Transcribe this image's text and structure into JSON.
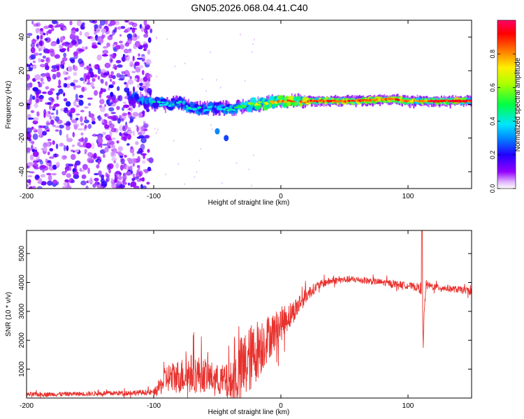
{
  "chart_data": [
    {
      "type": "heatmap",
      "title": "GN05.2026.068.04.41.C40",
      "xlabel": "Height of straight line (km)",
      "ylabel": "Frequency (Hz)",
      "xlim": [
        -200,
        150
      ],
      "ylim": [
        -50,
        50
      ],
      "xticks": [
        -200,
        -100,
        0,
        100
      ],
      "yticks": [
        -40,
        -20,
        0,
        20,
        40
      ],
      "colorbar": {
        "label": "Normalized spectral amplitude",
        "range": [
          0,
          1
        ],
        "ticks": [
          0.0,
          0.2,
          0.4,
          0.6,
          0.8
        ],
        "tick_labels": [
          "0.0",
          "0.2",
          "0.4",
          "0.6",
          "0.8"
        ]
      },
      "noise_region": {
        "x": [
          -200,
          -102
        ],
        "level": 0.15
      },
      "ridge": [
        {
          "x": -120,
          "y": 4,
          "a": 0.3
        },
        {
          "x": -110,
          "y": 3,
          "a": 0.45
        },
        {
          "x": -100,
          "y": 1,
          "a": 0.5
        },
        {
          "x": -90,
          "y": 0,
          "a": 0.4
        },
        {
          "x": -80,
          "y": 1,
          "a": 0.45
        },
        {
          "x": -70,
          "y": -2,
          "a": 0.45
        },
        {
          "x": -60,
          "y": -3,
          "a": 0.4
        },
        {
          "x": -50,
          "y": -2,
          "a": 0.4
        },
        {
          "x": -40,
          "y": -3,
          "a": 0.45
        },
        {
          "x": -30,
          "y": -1,
          "a": 0.55
        },
        {
          "x": -20,
          "y": 0,
          "a": 0.7
        },
        {
          "x": -10,
          "y": 1,
          "a": 0.75
        },
        {
          "x": 0,
          "y": 2,
          "a": 0.85
        },
        {
          "x": 10,
          "y": 2,
          "a": 0.85
        },
        {
          "x": 30,
          "y": 2,
          "a": 0.9
        },
        {
          "x": 60,
          "y": 2,
          "a": 0.9
        },
        {
          "x": 80,
          "y": 3,
          "a": 0.85
        },
        {
          "x": 90,
          "y": 3,
          "a": 0.9
        },
        {
          "x": 100,
          "y": 2,
          "a": 0.85
        },
        {
          "x": 108,
          "y": 2,
          "a": 0.8
        },
        {
          "x": 120,
          "y": 2,
          "a": 0.95
        },
        {
          "x": 150,
          "y": 2,
          "a": 0.95
        }
      ],
      "isolated_blobs": [
        {
          "x": -50,
          "y": -16,
          "a": 0.3
        },
        {
          "x": -43,
          "y": -20,
          "a": 0.25
        }
      ]
    },
    {
      "type": "line",
      "xlabel": "Height of straight line (km)",
      "ylabel": "SNR (10 * v/v)",
      "xlim": [
        -200,
        150
      ],
      "ylim": [
        0,
        5800
      ],
      "xticks": [
        -200,
        -100,
        0,
        100
      ],
      "yticks": [
        1000,
        2000,
        3000,
        4000,
        5000
      ],
      "series": [
        {
          "name": "SNR",
          "color": "#e8322e",
          "x": [
            -200,
            -150,
            -100,
            -95,
            -90,
            -80,
            -70,
            -60,
            -50,
            -40,
            -35,
            -30,
            -25,
            -20,
            -15,
            -10,
            -5,
            0,
            5,
            10,
            15,
            20,
            25,
            30,
            35,
            40,
            50,
            60,
            70,
            80,
            90,
            100,
            105,
            110,
            112,
            114,
            116,
            120,
            130,
            140,
            150
          ],
          "y": [
            120,
            150,
            200,
            400,
            700,
            750,
            850,
            800,
            650,
            500,
            700,
            1000,
            1300,
            1600,
            1850,
            2100,
            2300,
            2550,
            2800,
            3000,
            3300,
            3550,
            3750,
            3900,
            4000,
            4050,
            4100,
            4100,
            4050,
            4000,
            3950,
            3900,
            3850,
            3800,
            2200,
            3900,
            3900,
            3850,
            3800,
            3750,
            3700
          ],
          "noise_amplitude": [
            80,
            80,
            100,
            300,
            500,
            600,
            700,
            600,
            500,
            700,
            1100,
            1300,
            1200,
            1100,
            1000,
            800,
            700,
            600,
            500,
            400,
            350,
            250,
            200,
            150,
            150,
            120,
            120,
            120,
            120,
            120,
            120,
            120,
            120,
            200,
            300,
            200,
            120,
            120,
            120,
            120,
            120
          ]
        }
      ]
    }
  ],
  "figure": {
    "title": "GN05.2026.068.04.41.C40"
  }
}
